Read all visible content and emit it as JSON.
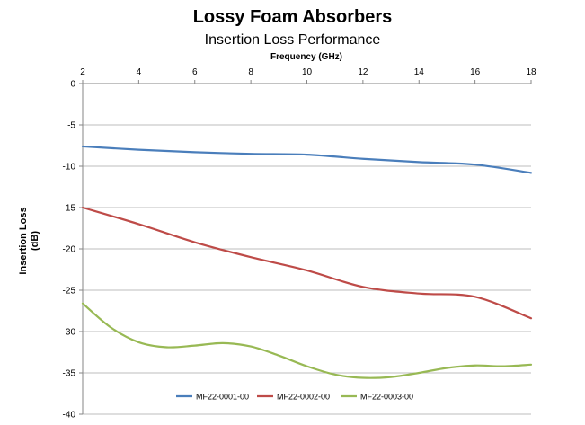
{
  "chart_data": {
    "type": "line",
    "title": "Lossy Foam Absorbers",
    "subtitle": "Insertion Loss Performance",
    "xlabel": "Frequency (GHz)",
    "ylabel_line1": "Insertion Loss",
    "ylabel_line2": "(dB)",
    "xlim": [
      2,
      18
    ],
    "ylim": [
      -40,
      0
    ],
    "x_ticks": [
      2,
      4,
      6,
      8,
      10,
      12,
      14,
      16,
      18
    ],
    "y_ticks": [
      0,
      -5,
      -10,
      -15,
      -20,
      -25,
      -30,
      -35,
      -40
    ],
    "legend_position": "bottom",
    "series": [
      {
        "name": "MF22-0001-00",
        "color": "#4a7ebb",
        "x": [
          2,
          4,
          6,
          8,
          10,
          12,
          14,
          16,
          18
        ],
        "y": [
          -7.6,
          -8.0,
          -8.3,
          -8.5,
          -8.6,
          -9.1,
          -9.5,
          -9.8,
          -10.8
        ]
      },
      {
        "name": "MF22-0002-00",
        "color": "#be4b48",
        "x": [
          2,
          4,
          6,
          8,
          10,
          12,
          14,
          16,
          18
        ],
        "y": [
          -15.0,
          -17.0,
          -19.2,
          -21.0,
          -22.6,
          -24.6,
          -25.4,
          -25.8,
          -28.4
        ]
      },
      {
        "name": "MF22-0003-00",
        "color": "#98b954",
        "x": [
          2,
          3,
          4,
          5,
          6,
          7,
          8,
          9,
          10,
          11,
          12,
          13,
          14,
          15,
          16,
          17,
          18
        ],
        "y": [
          -26.6,
          -29.5,
          -31.3,
          -31.9,
          -31.7,
          -31.4,
          -31.8,
          -32.9,
          -34.2,
          -35.2,
          -35.6,
          -35.5,
          -35.0,
          -34.4,
          -34.1,
          -34.2,
          -34.0
        ]
      }
    ]
  }
}
